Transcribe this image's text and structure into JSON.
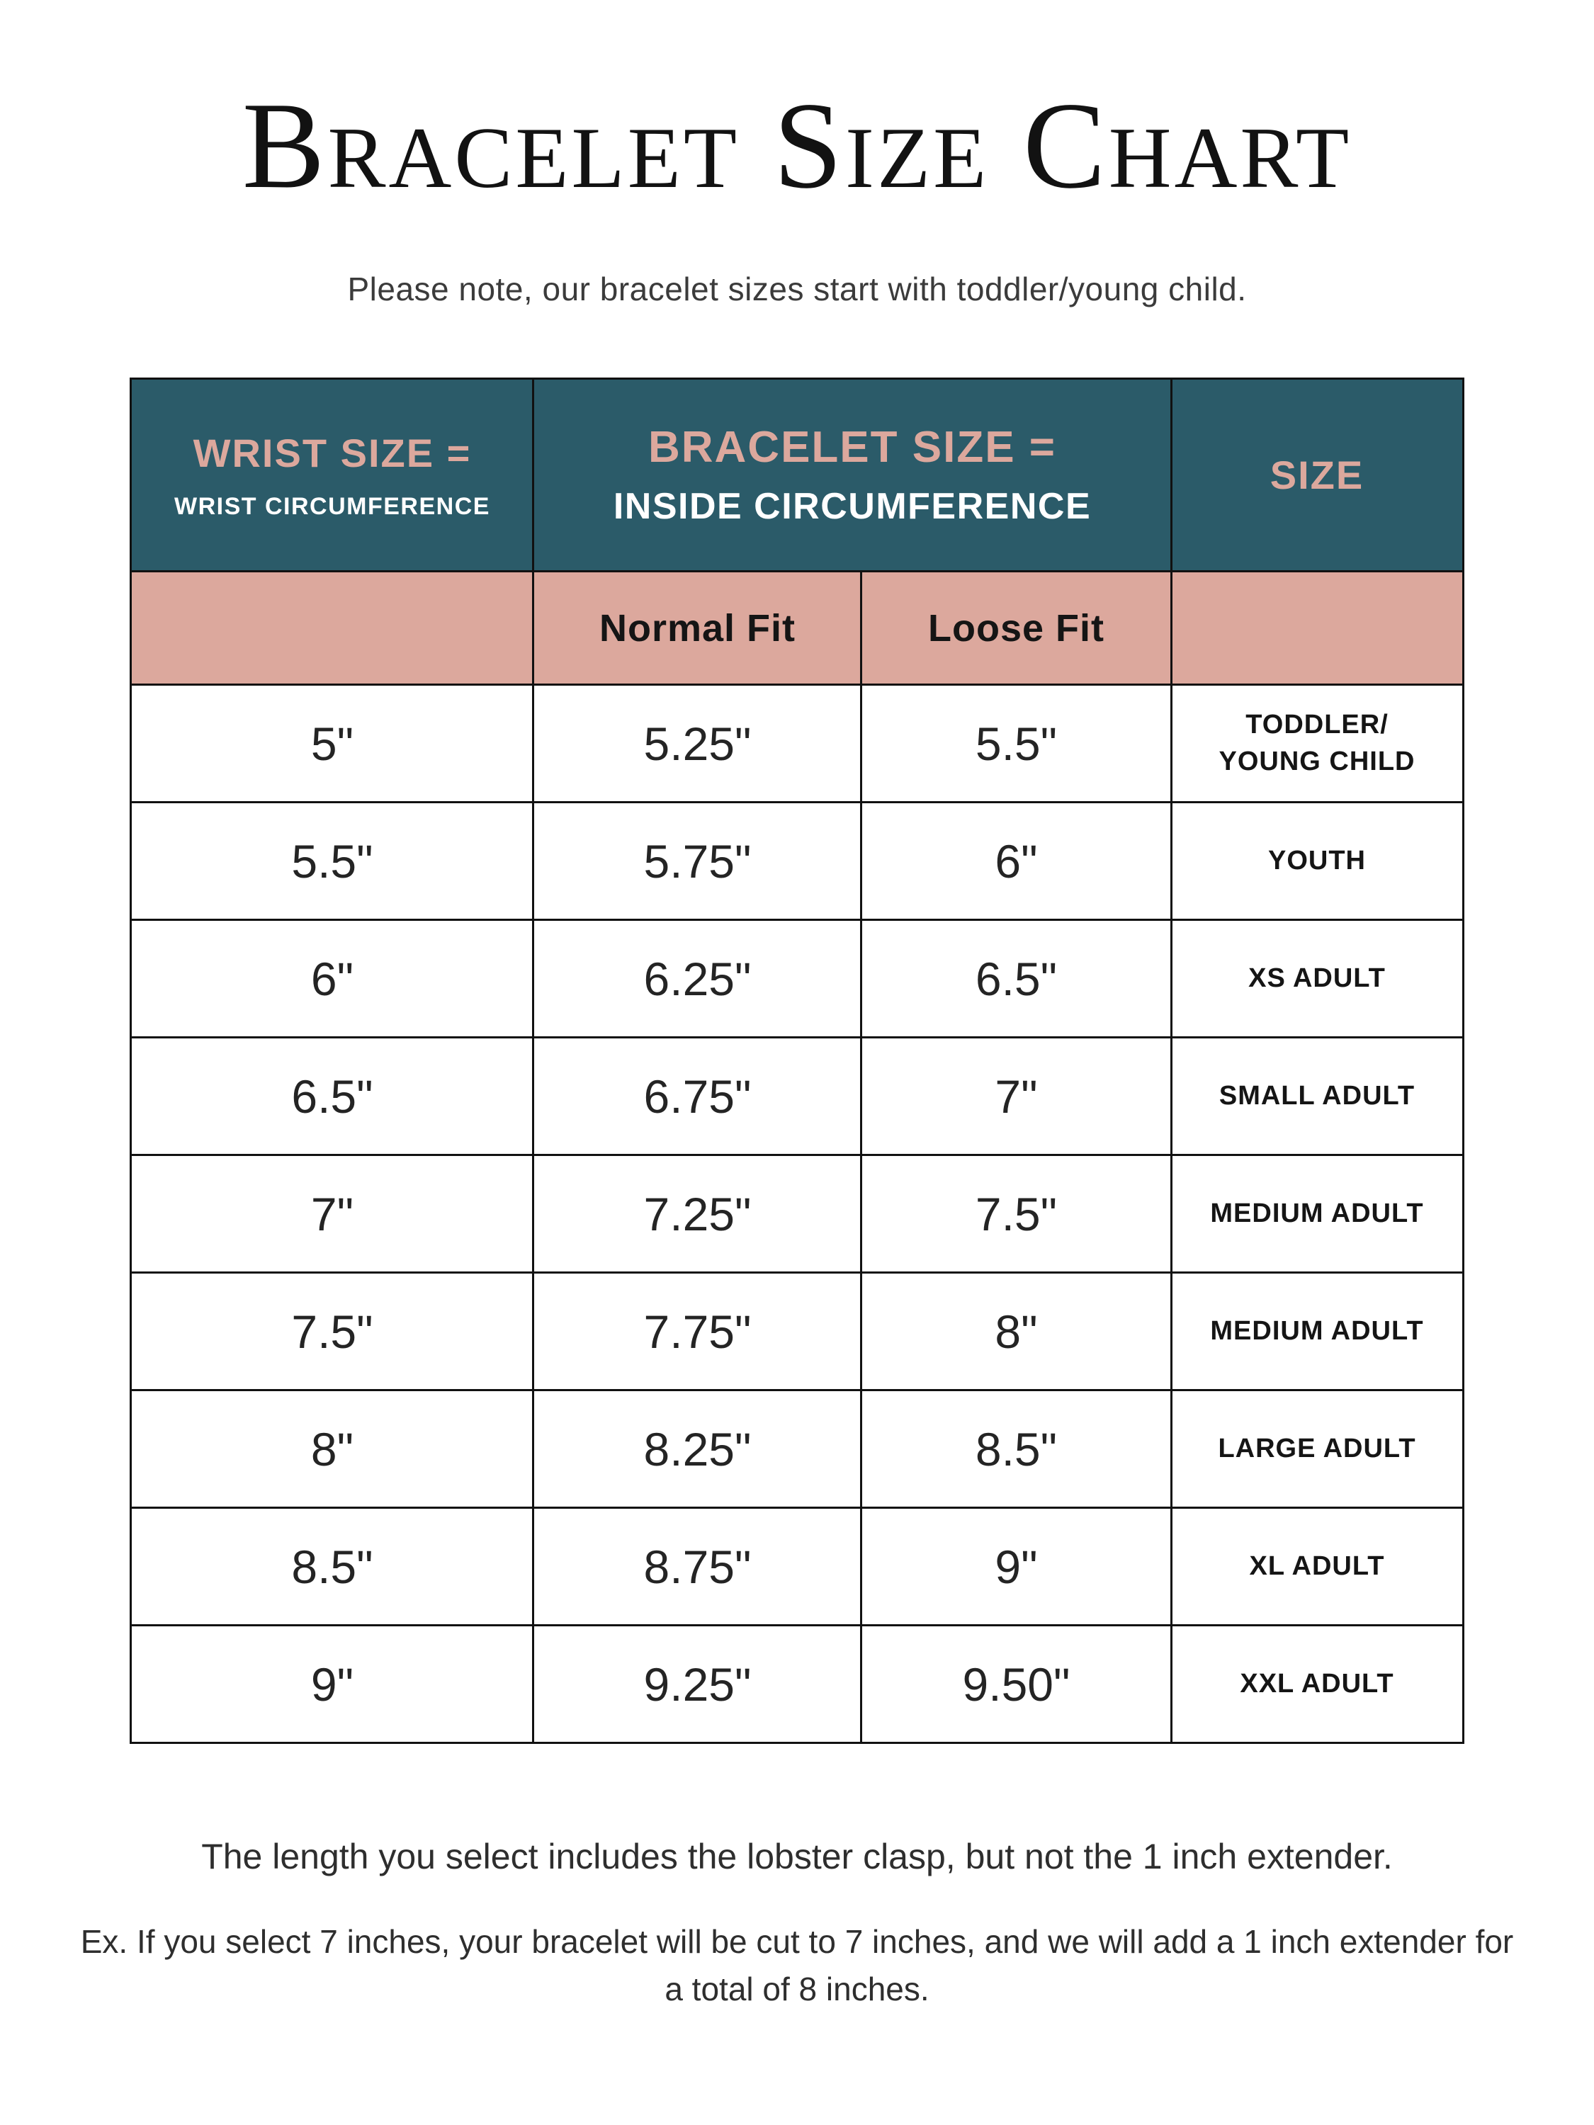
{
  "page": {
    "title": "Bracelet Size Chart",
    "subtitle": "Please note, our bracelet sizes start with toddler/young child.",
    "note1": "The length you select includes the lobster clasp, but not the 1 inch extender.",
    "note2": "Ex. If you select 7 inches, your bracelet will be cut to 7 inches, and we will add a 1 inch extender for a total of 8 inches."
  },
  "colors": {
    "teal": "#2b5b69",
    "pink": "#dca89d",
    "border": "#111111",
    "text": "#1e1e1e"
  },
  "chart_data": {
    "type": "table",
    "title": "Bracelet Size Chart",
    "header": {
      "wrist_title": "WRIST SIZE =",
      "wrist_subtitle": "WRIST CIRCUMFERENCE",
      "bracelet_title": "BRACELET SIZE =",
      "bracelet_subtitle": "INSIDE CIRCUMFERENCE",
      "size_title": "SIZE",
      "normal_fit": "Normal Fit",
      "loose_fit": "Loose Fit"
    },
    "rows": [
      {
        "wrist": "5\"",
        "normal_fit": "5.25\"",
        "loose_fit": "5.5\"",
        "size": "TODDLER/\nYOUNG CHILD"
      },
      {
        "wrist": "5.5\"",
        "normal_fit": "5.75\"",
        "loose_fit": "6\"",
        "size": "YOUTH"
      },
      {
        "wrist": "6\"",
        "normal_fit": "6.25\"",
        "loose_fit": "6.5\"",
        "size": "XS ADULT"
      },
      {
        "wrist": "6.5\"",
        "normal_fit": "6.75\"",
        "loose_fit": "7\"",
        "size": "SMALL ADULT"
      },
      {
        "wrist": "7\"",
        "normal_fit": "7.25\"",
        "loose_fit": "7.5\"",
        "size": "MEDIUM ADULT"
      },
      {
        "wrist": "7.5\"",
        "normal_fit": "7.75\"",
        "loose_fit": "8\"",
        "size": "MEDIUM ADULT"
      },
      {
        "wrist": "8\"",
        "normal_fit": "8.25\"",
        "loose_fit": "8.5\"",
        "size": "LARGE ADULT"
      },
      {
        "wrist": "8.5\"",
        "normal_fit": "8.75\"",
        "loose_fit": "9\"",
        "size": "XL ADULT"
      },
      {
        "wrist": "9\"",
        "normal_fit": "9.25\"",
        "loose_fit": "9.50\"",
        "size": "XXL ADULT"
      }
    ]
  }
}
